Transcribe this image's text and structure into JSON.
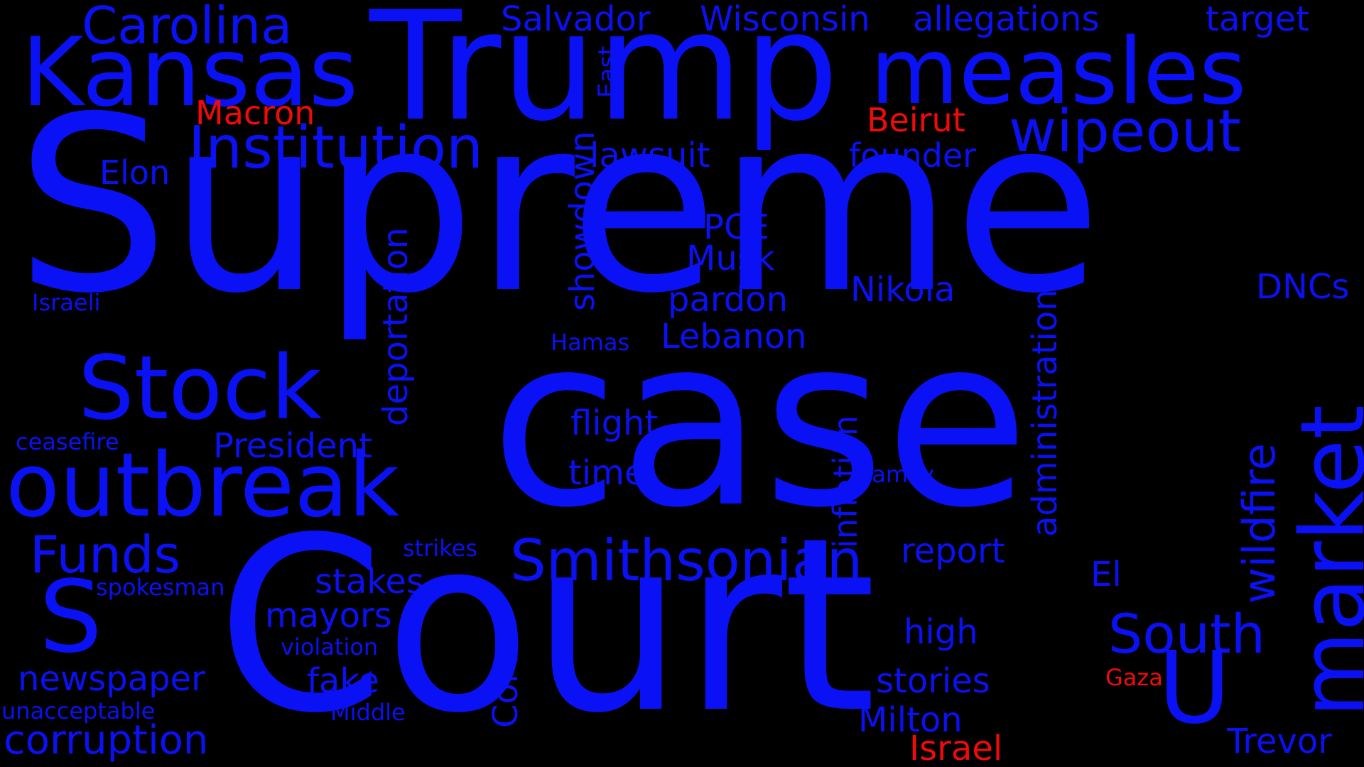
{
  "colors": {
    "background": "#000000",
    "primary": "#0a12f5",
    "highlight": "#f00a0a"
  },
  "words": [
    {
      "text": "Supreme",
      "color": "primary"
    },
    {
      "text": "case",
      "color": "primary"
    },
    {
      "text": "Court",
      "color": "primary"
    },
    {
      "text": "Trump",
      "color": "primary"
    },
    {
      "text": "measles",
      "color": "primary"
    },
    {
      "text": "Kansas",
      "color": "primary"
    },
    {
      "text": "Carolina",
      "color": "primary"
    },
    {
      "text": "Salvador",
      "color": "primary"
    },
    {
      "text": "Wisconsin",
      "color": "primary"
    },
    {
      "text": "allegations",
      "color": "primary"
    },
    {
      "text": "target",
      "color": "primary"
    },
    {
      "text": "East",
      "color": "primary"
    },
    {
      "text": "Macron",
      "color": "highlight"
    },
    {
      "text": "Beirut",
      "color": "highlight"
    },
    {
      "text": "wipeout",
      "color": "primary"
    },
    {
      "text": "Institution",
      "color": "primary"
    },
    {
      "text": "lawsuit",
      "color": "primary"
    },
    {
      "text": "founder",
      "color": "primary"
    },
    {
      "text": "Elon",
      "color": "primary"
    },
    {
      "text": "showdown",
      "color": "primary"
    },
    {
      "text": "PCE",
      "color": "primary"
    },
    {
      "text": "Musk",
      "color": "primary"
    },
    {
      "text": "deportation",
      "color": "primary"
    },
    {
      "text": "Nikola",
      "color": "primary"
    },
    {
      "text": "DNCs",
      "color": "primary"
    },
    {
      "text": "administration",
      "color": "primary"
    },
    {
      "text": "pardon",
      "color": "primary"
    },
    {
      "text": "Israeli",
      "color": "primary"
    },
    {
      "text": "Hamas",
      "color": "primary"
    },
    {
      "text": "Lebanon",
      "color": "primary"
    },
    {
      "text": "Stock",
      "color": "primary"
    },
    {
      "text": "inflation",
      "color": "primary"
    },
    {
      "text": "market",
      "color": "primary"
    },
    {
      "text": "wildfire",
      "color": "primary"
    },
    {
      "text": "flight",
      "color": "primary"
    },
    {
      "text": "ceasefire",
      "color": "primary"
    },
    {
      "text": "President",
      "color": "primary"
    },
    {
      "text": "outbreak",
      "color": "primary"
    },
    {
      "text": "time",
      "color": "primary"
    },
    {
      "text": "family",
      "color": "primary"
    },
    {
      "text": "Funds",
      "color": "primary"
    },
    {
      "text": "strikes",
      "color": "primary"
    },
    {
      "text": "Smithsonian",
      "color": "primary"
    },
    {
      "text": "report",
      "color": "primary"
    },
    {
      "text": "El",
      "color": "primary"
    },
    {
      "text": "S",
      "color": "primary"
    },
    {
      "text": "spokesman",
      "color": "primary"
    },
    {
      "text": "stakes",
      "color": "primary"
    },
    {
      "text": "mayors",
      "color": "primary"
    },
    {
      "text": "South",
      "color": "primary"
    },
    {
      "text": "high",
      "color": "primary"
    },
    {
      "text": "violation",
      "color": "primary"
    },
    {
      "text": "U",
      "color": "primary"
    },
    {
      "text": "Core",
      "color": "primary"
    },
    {
      "text": "newspaper",
      "color": "primary"
    },
    {
      "text": "fake",
      "color": "primary"
    },
    {
      "text": "stories",
      "color": "primary"
    },
    {
      "text": "Gaza",
      "color": "highlight"
    },
    {
      "text": "unacceptable",
      "color": "primary"
    },
    {
      "text": "Middle",
      "color": "primary"
    },
    {
      "text": "Milton",
      "color": "primary"
    },
    {
      "text": "corruption",
      "color": "primary"
    },
    {
      "text": "Israel",
      "color": "highlight"
    },
    {
      "text": "Trevor",
      "color": "primary"
    }
  ]
}
